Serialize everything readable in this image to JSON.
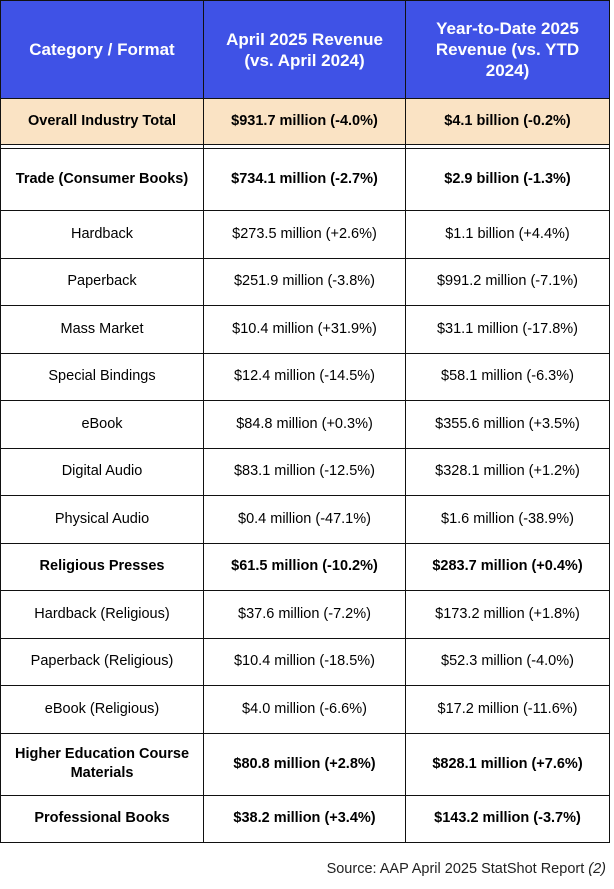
{
  "colors": {
    "header_bg": "#3f52e6",
    "header_text": "#ffffff",
    "highlight_bg": "#fae3c4",
    "row_bg": "#ffffff",
    "border": "#111111"
  },
  "table": {
    "headers": [
      "Category / Format",
      "April 2025 Revenue (vs. April 2024)",
      "Year-to-Date 2025 Revenue (vs. YTD 2024)"
    ],
    "rows": [
      {
        "cells": [
          "Overall Industry Total",
          "$931.7 million (-4.0%)",
          "$4.1 billion (-0.2%)"
        ],
        "style": "total"
      },
      {
        "cells": [
          "Trade (Consumer Books)",
          "$734.1 million (-2.7%)",
          "$2.9 billion (-1.3%)"
        ],
        "style": "bold"
      },
      {
        "cells": [
          "Hardback",
          "$273.5 million (+2.6%)",
          "$1.1 billion (+4.4%)"
        ],
        "style": "normal"
      },
      {
        "cells": [
          "Paperback",
          "$251.9 million (-3.8%)",
          "$991.2 million (-7.1%)"
        ],
        "style": "normal"
      },
      {
        "cells": [
          "Mass Market",
          "$10.4 million (+31.9%)",
          "$31.1 million (-17.8%)"
        ],
        "style": "normal"
      },
      {
        "cells": [
          "Special Bindings",
          "$12.4 million (-14.5%)",
          "$58.1 million (-6.3%)"
        ],
        "style": "normal"
      },
      {
        "cells": [
          "eBook",
          "$84.8 million (+0.3%)",
          "$355.6 million (+3.5%)"
        ],
        "style": "normal"
      },
      {
        "cells": [
          "Digital Audio",
          "$83.1 million (-12.5%)",
          "$328.1 million (+1.2%)"
        ],
        "style": "normal"
      },
      {
        "cells": [
          "Physical Audio",
          "$0.4 million (-47.1%)",
          "$1.6 million (-38.9%)"
        ],
        "style": "normal"
      },
      {
        "cells": [
          "Religious Presses",
          "$61.5 million (-10.2%)",
          "$283.7 million (+0.4%)"
        ],
        "style": "bold"
      },
      {
        "cells": [
          "Hardback (Religious)",
          "$37.6 million (-7.2%)",
          "$173.2 million (+1.8%)"
        ],
        "style": "normal"
      },
      {
        "cells": [
          "Paperback (Religious)",
          "$10.4 million (-18.5%)",
          "$52.3 million (-4.0%)"
        ],
        "style": "normal"
      },
      {
        "cells": [
          "eBook (Religious)",
          "$4.0 million (-6.6%)",
          "$17.2 million (-11.6%)"
        ],
        "style": "normal"
      },
      {
        "cells": [
          "Higher Education Course Materials",
          "$80.8 million (+2.8%)",
          "$828.1 million (+7.6%)"
        ],
        "style": "bold"
      },
      {
        "cells": [
          "Professional Books",
          "$38.2 million (+3.4%)",
          "$143.2 million (-3.7%)"
        ],
        "style": "bold"
      }
    ]
  },
  "caption": {
    "text": "Source: AAP April 2025 StatShot Report ",
    "ref": "(2)"
  }
}
